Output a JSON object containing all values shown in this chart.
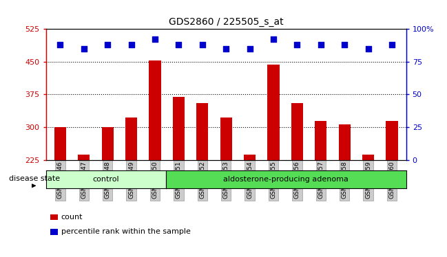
{
  "title": "GDS2860 / 225505_s_at",
  "samples": [
    "GSM211446",
    "GSM211447",
    "GSM211448",
    "GSM211449",
    "GSM211450",
    "GSM211451",
    "GSM211452",
    "GSM211453",
    "GSM211454",
    "GSM211455",
    "GSM211456",
    "GSM211457",
    "GSM211458",
    "GSM211459",
    "GSM211460"
  ],
  "counts": [
    300,
    237,
    300,
    322,
    452,
    370,
    355,
    322,
    237,
    443,
    355,
    315,
    307,
    237,
    315
  ],
  "percentiles": [
    88,
    85,
    88,
    88,
    92,
    88,
    88,
    85,
    85,
    92,
    88,
    88,
    88,
    85,
    88
  ],
  "control_count": 5,
  "ylim_left": [
    225,
    525
  ],
  "ylim_right": [
    0,
    100
  ],
  "yticks_left": [
    225,
    300,
    375,
    450,
    525
  ],
  "yticks_right": [
    0,
    25,
    50,
    75,
    100
  ],
  "bar_color": "#cc0000",
  "dot_color": "#0000cc",
  "control_color": "#ccffcc",
  "adenoma_color": "#55dd55",
  "control_label": "control",
  "adenoma_label": "aldosterone-producing adenoma",
  "disease_state_label": "disease state",
  "legend_count_label": "count",
  "legend_pct_label": "percentile rank within the sample",
  "background_color": "#ffffff",
  "bar_width": 0.5,
  "dot_size": 35,
  "grid_yticks": [
    300,
    375,
    450
  ]
}
